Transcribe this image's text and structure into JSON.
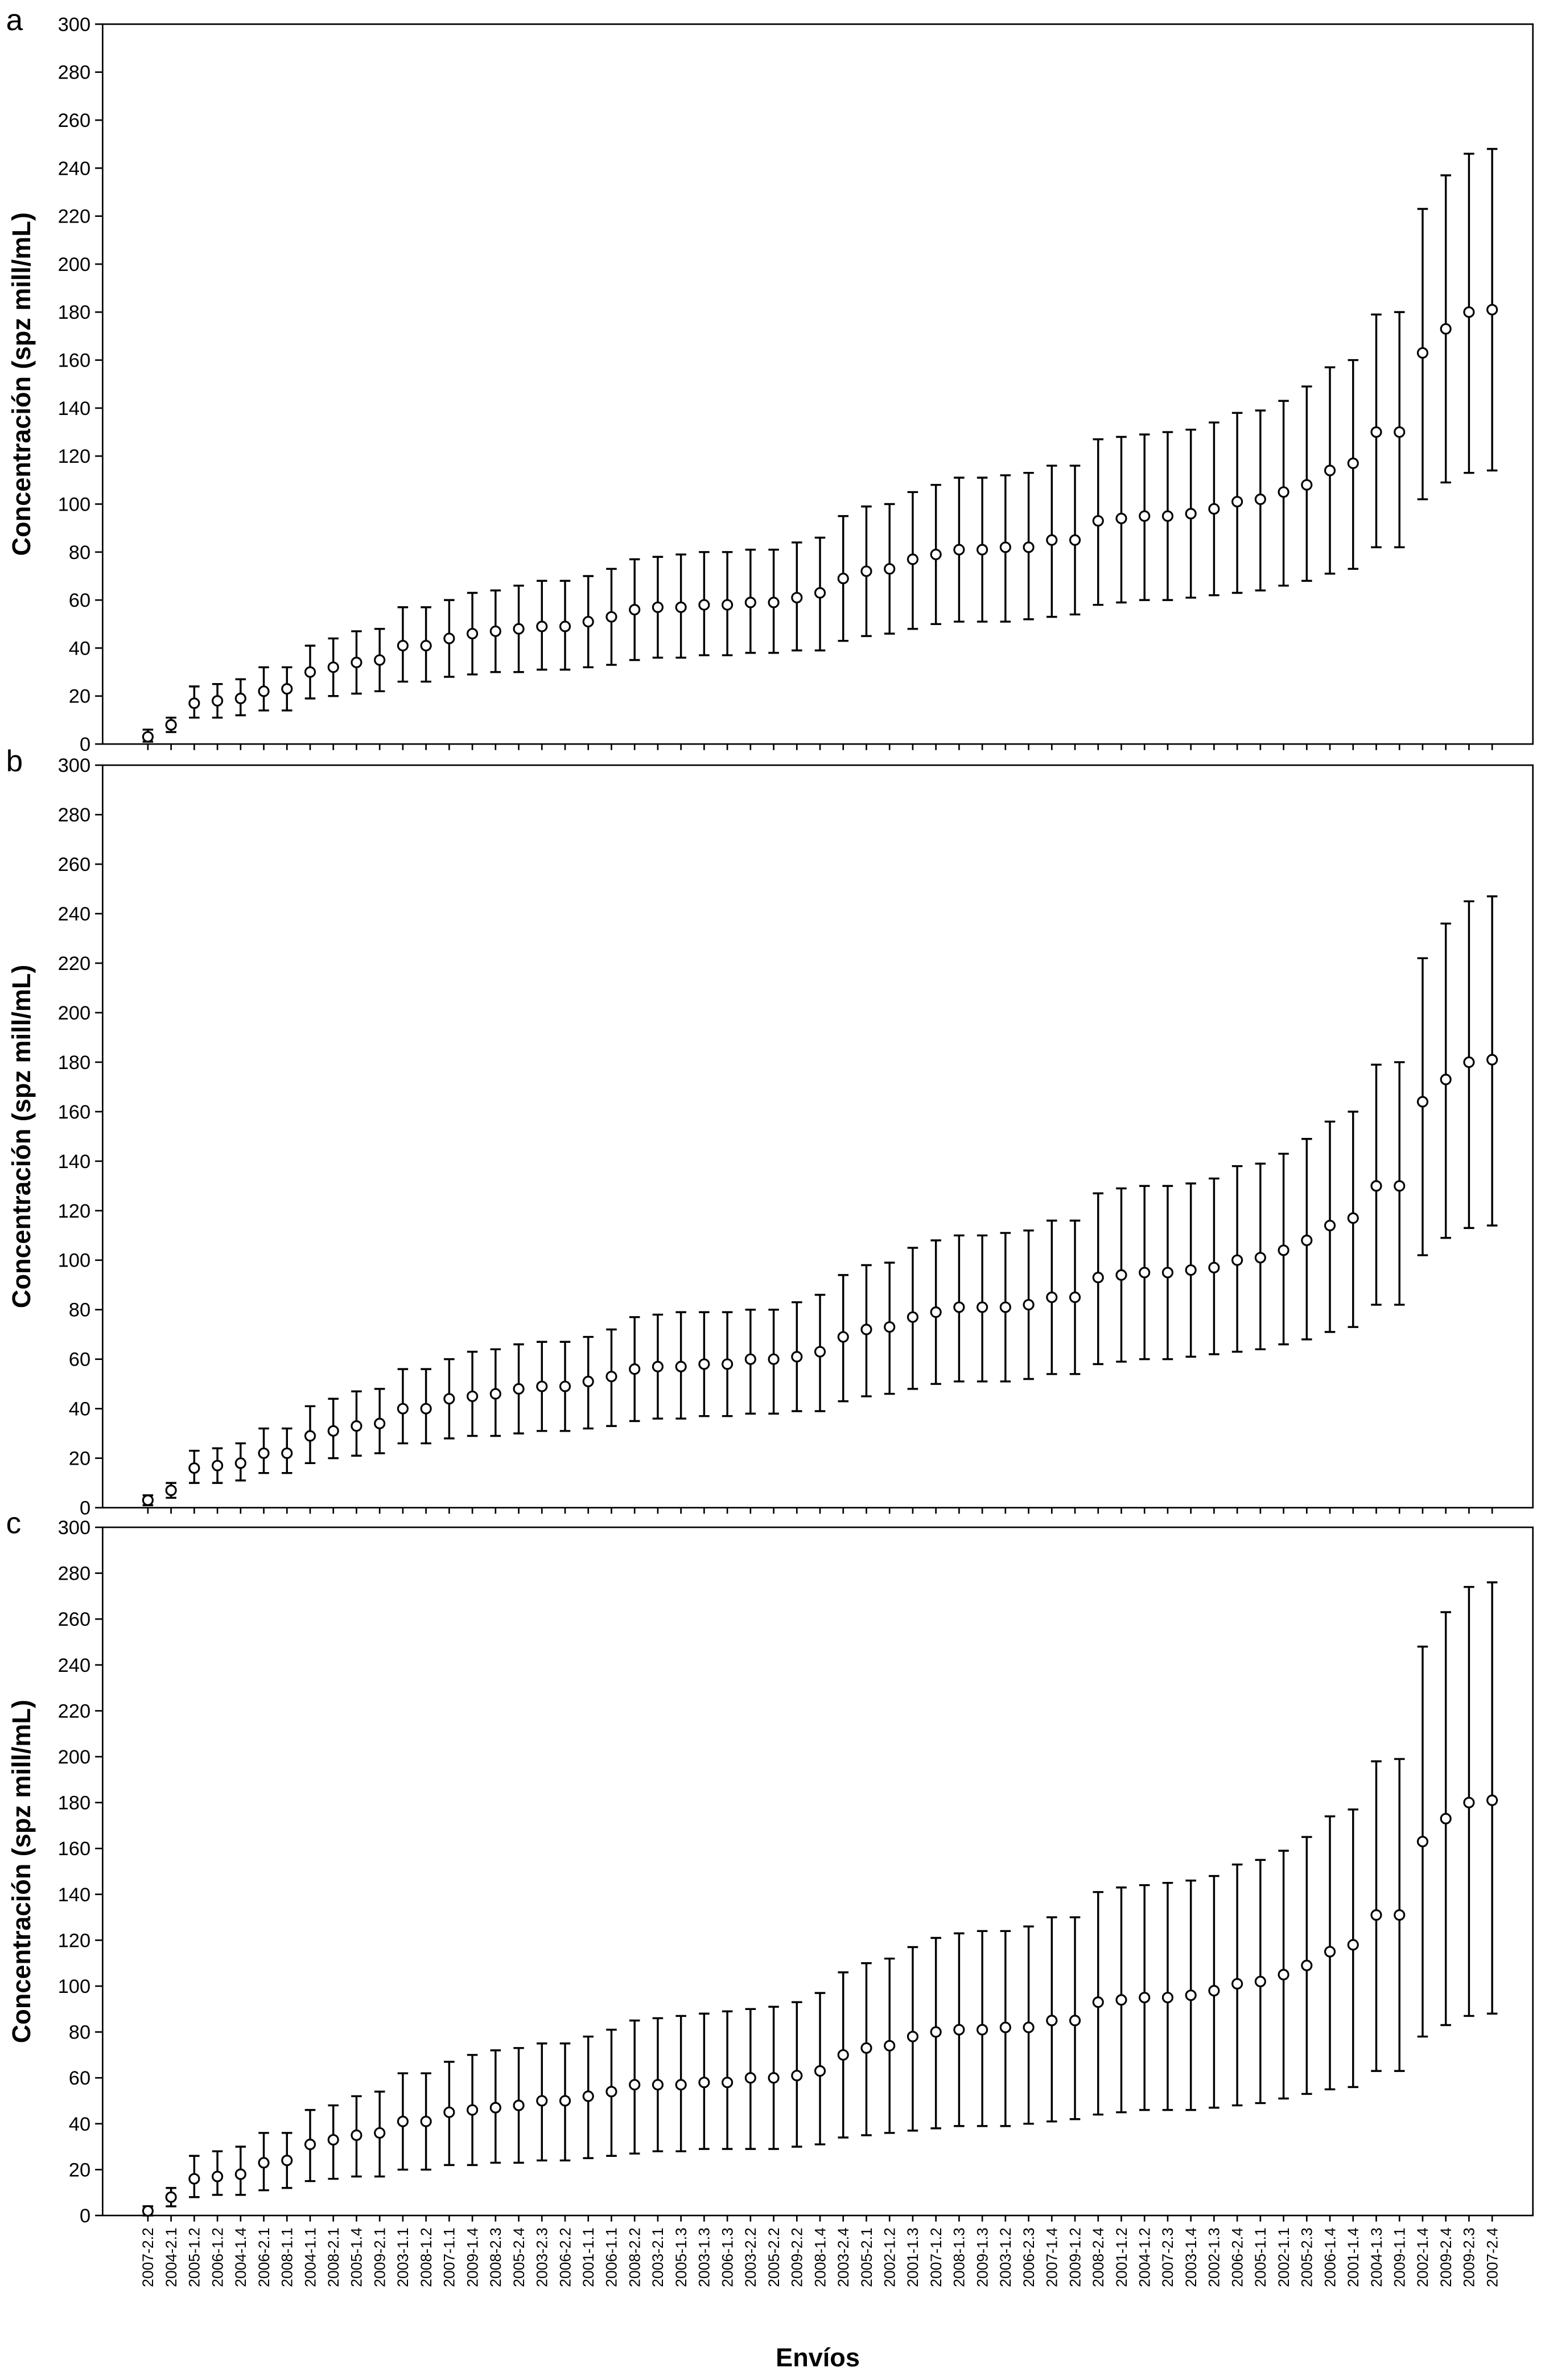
{
  "chart_data": [
    {
      "type": "errorbar",
      "label": "a",
      "ylabel": "Concentración (spz mill/mL)",
      "ylim": [
        0,
        300
      ],
      "yticks": [
        0,
        20,
        40,
        60,
        80,
        100,
        120,
        140,
        160,
        180,
        200,
        220,
        240,
        260,
        280,
        300
      ],
      "values": [
        3,
        8,
        17,
        18,
        19,
        22,
        23,
        30,
        32,
        34,
        35,
        41,
        41,
        44,
        46,
        47,
        48,
        49,
        49,
        51,
        53,
        56,
        57,
        57,
        58,
        58,
        59,
        59,
        61,
        63,
        69,
        72,
        73,
        77,
        79,
        81,
        81,
        82,
        82,
        85,
        85,
        93,
        94,
        95,
        95,
        96,
        98,
        101,
        102,
        105,
        108,
        114,
        117,
        130,
        130,
        163,
        173,
        180,
        181
      ],
      "lower": [
        1,
        5,
        11,
        11,
        12,
        14,
        14,
        19,
        20,
        21,
        22,
        26,
        26,
        28,
        29,
        30,
        30,
        31,
        31,
        32,
        33,
        35,
        36,
        36,
        37,
        37,
        38,
        38,
        39,
        39,
        43,
        45,
        46,
        48,
        50,
        51,
        51,
        51,
        52,
        53,
        54,
        58,
        59,
        60,
        60,
        61,
        62,
        63,
        64,
        66,
        68,
        71,
        73,
        82,
        82,
        102,
        109,
        113,
        114
      ],
      "upper": [
        6,
        11,
        24,
        25,
        27,
        32,
        32,
        41,
        44,
        47,
        48,
        57,
        57,
        60,
        63,
        64,
        66,
        68,
        68,
        70,
        73,
        77,
        78,
        79,
        80,
        80,
        81,
        81,
        84,
        86,
        95,
        99,
        100,
        105,
        108,
        111,
        111,
        112,
        113,
        116,
        116,
        127,
        128,
        129,
        130,
        131,
        134,
        138,
        139,
        143,
        149,
        157,
        160,
        179,
        180,
        223,
        237,
        246,
        248
      ]
    },
    {
      "type": "errorbar",
      "label": "b",
      "ylabel": "Concentración (spz mill/mL)",
      "ylim": [
        0,
        300
      ],
      "yticks": [
        0,
        20,
        40,
        60,
        80,
        100,
        120,
        140,
        160,
        180,
        200,
        220,
        240,
        260,
        280,
        300
      ],
      "values": [
        3,
        7,
        16,
        17,
        18,
        22,
        22,
        29,
        31,
        33,
        34,
        40,
        40,
        44,
        45,
        46,
        48,
        49,
        49,
        51,
        53,
        56,
        57,
        57,
        58,
        58,
        60,
        60,
        61,
        63,
        69,
        72,
        73,
        77,
        79,
        81,
        81,
        81,
        82,
        85,
        85,
        93,
        94,
        95,
        95,
        96,
        97,
        100,
        101,
        104,
        108,
        114,
        117,
        130,
        130,
        164,
        173,
        180,
        181
      ],
      "lower": [
        1,
        4,
        10,
        10,
        11,
        14,
        14,
        18,
        20,
        21,
        22,
        26,
        26,
        28,
        29,
        29,
        30,
        31,
        31,
        32,
        33,
        35,
        36,
        36,
        37,
        37,
        38,
        38,
        39,
        39,
        43,
        45,
        46,
        48,
        50,
        51,
        51,
        51,
        52,
        54,
        54,
        58,
        59,
        60,
        60,
        61,
        62,
        63,
        64,
        66,
        68,
        71,
        73,
        82,
        82,
        102,
        109,
        113,
        114
      ],
      "upper": [
        5,
        10,
        23,
        24,
        26,
        32,
        32,
        41,
        44,
        47,
        48,
        56,
        56,
        60,
        63,
        64,
        66,
        67,
        67,
        69,
        72,
        77,
        78,
        79,
        79,
        79,
        80,
        80,
        83,
        86,
        94,
        98,
        99,
        105,
        108,
        110,
        110,
        111,
        112,
        116,
        116,
        127,
        129,
        130,
        130,
        131,
        133,
        138,
        139,
        143,
        149,
        156,
        160,
        179,
        180,
        222,
        236,
        245,
        247
      ]
    },
    {
      "type": "errorbar",
      "label": "c",
      "ylabel": "Concentración (spz mill/mL)",
      "xlabel": "Envíos",
      "ylim": [
        0,
        300
      ],
      "yticks": [
        0,
        20,
        40,
        60,
        80,
        100,
        120,
        140,
        160,
        180,
        200,
        220,
        240,
        260,
        280,
        300
      ],
      "categories": [
        "2007-2.2",
        "2004-2.1",
        "2005-1.2",
        "2006-1.2",
        "2004-1.4",
        "2006-2.1",
        "2008-1.1",
        "2004-1.1",
        "2008-2.1",
        "2005-1.4",
        "2009-2.1",
        "2003-1.1",
        "2008-1.2",
        "2007-1.1",
        "2009-1.4",
        "2008-2.3",
        "2005-2.4",
        "2003-2.3",
        "2006-2.2",
        "2001-1.1",
        "2006-1.1",
        "2008-2.2",
        "2003-2.1",
        "2005-1.3",
        "2003-1.3",
        "2006-1.3",
        "2003-2.2",
        "2005-2.2",
        "2009-2.2",
        "2008-1.4",
        "2003-2.4",
        "2005-2.1",
        "2002-1.2",
        "2001-1.3",
        "2007-1.2",
        "2008-1.3",
        "2009-1.3",
        "2003-1.2",
        "2006-2.3",
        "2007-1.4",
        "2009-1.2",
        "2008-2.4",
        "2001-1.2",
        "2004-1.2",
        "2007-2.3",
        "2003-1.4",
        "2002-1.3",
        "2006-2.4",
        "2005-1.1",
        "2002-1.1",
        "2005-2.3",
        "2006-1.4",
        "2001-1.4",
        "2004-1.3",
        "2009-1.1",
        "2002-1.4",
        "2009-2.4",
        "2009-2.3",
        "2007-2.4"
      ],
      "values": [
        2,
        8,
        16,
        17,
        18,
        23,
        24,
        31,
        33,
        35,
        36,
        41,
        41,
        45,
        46,
        47,
        48,
        50,
        50,
        52,
        54,
        57,
        57,
        57,
        58,
        58,
        60,
        60,
        61,
        63,
        70,
        73,
        74,
        78,
        80,
        81,
        81,
        82,
        82,
        85,
        85,
        93,
        94,
        95,
        95,
        96,
        98,
        101,
        102,
        105,
        109,
        115,
        118,
        131,
        131,
        163,
        173,
        180,
        181
      ],
      "lower": [
        0,
        4,
        8,
        9,
        9,
        11,
        12,
        15,
        16,
        17,
        17,
        20,
        20,
        22,
        22,
        23,
        23,
        24,
        24,
        25,
        26,
        27,
        28,
        28,
        29,
        29,
        29,
        29,
        30,
        31,
        34,
        35,
        36,
        37,
        38,
        39,
        39,
        39,
        40,
        41,
        42,
        44,
        45,
        46,
        46,
        46,
        47,
        48,
        49,
        51,
        53,
        55,
        56,
        63,
        63,
        78,
        83,
        87,
        88
      ],
      "upper": [
        4,
        12,
        26,
        28,
        30,
        36,
        36,
        46,
        48,
        52,
        54,
        62,
        62,
        67,
        70,
        72,
        73,
        75,
        75,
        78,
        81,
        85,
        86,
        87,
        88,
        89,
        90,
        91,
        93,
        97,
        106,
        110,
        112,
        117,
        121,
        123,
        124,
        124,
        126,
        130,
        130,
        141,
        143,
        144,
        145,
        146,
        148,
        153,
        155,
        159,
        165,
        174,
        177,
        198,
        199,
        248,
        263,
        274,
        276
      ]
    }
  ]
}
